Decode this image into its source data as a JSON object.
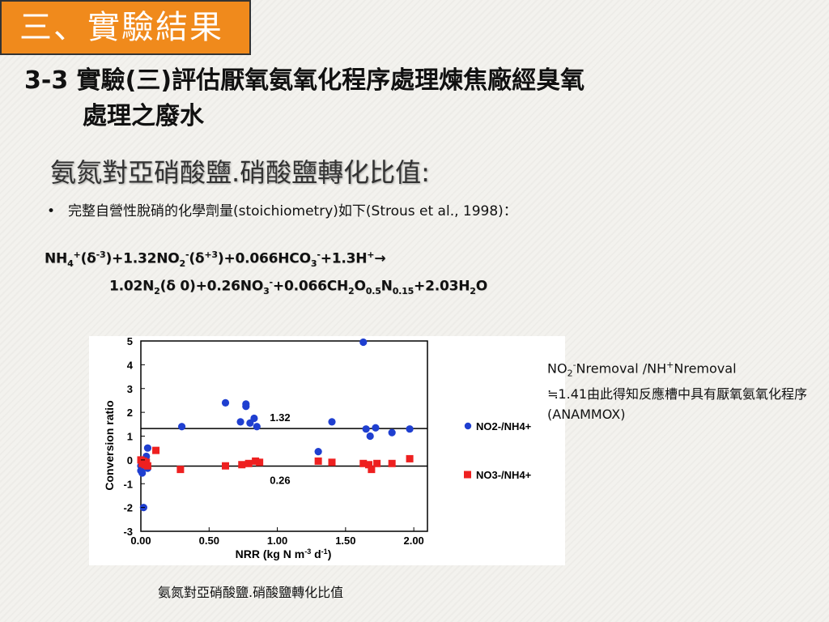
{
  "section_tag": "三、實驗結果",
  "heading": {
    "line1": "3-3 實驗(三)評估厭氧氨氧化程序處理煉焦廠經臭氧",
    "line2": "處理之廢水"
  },
  "subheading": "氨氮對亞硝酸鹽.硝酸鹽轉化比值:",
  "bullet": {
    "symbol": "•",
    "text": "完整自營性脫硝的化學劑量(stoichiometry)如下(Strous et al., 1998)："
  },
  "equation": {
    "line1": {
      "p1": "NH",
      "p1_sub": "4",
      "p1_sup": "+",
      "p2": "(δ",
      "p2_sup": "-3",
      "p3": ")+1.32NO",
      "p3_sub": "2",
      "p3_sup": "-",
      "p4": "(δ",
      "p4_sup": "+3",
      "p5": ")+0.066HCO",
      "p5_sub": "3",
      "p5_sup": "-",
      "p6": "+1.3H",
      "p6_sup": "+",
      "p7": "→"
    },
    "line2": {
      "p1": "1.02N",
      "p1_sub": "2",
      "p2": "(δ 0)+0.26NO",
      "p2_sub": "3",
      "p2_sup": "-",
      "p3": "+0.066CH",
      "p3_sub": "2",
      "p4": "O",
      "p4_sub": "0.5",
      "p5": "N",
      "p5_sub": "0.15",
      "p6": "+2.03H",
      "p6_sub": "2",
      "p7": "O"
    }
  },
  "note": {
    "a": "NO",
    "a_sub": "2",
    "a_sup": "-",
    "b": "Nremoval /NH",
    "b_sub": "4",
    "b_sup": "+",
    "c": "Nremoval",
    "d": "≒1.41由此得知反應槽中具有厭氧氨氧化程序(ANAMMOX)"
  },
  "caption": "氨氮對亞硝酸鹽.硝酸鹽轉化比值",
  "colors": {
    "tag_bg": "#f08a1c",
    "series_no2": "#1f3fd0",
    "series_no3": "#ee2020"
  },
  "chart_data": {
    "type": "scatter",
    "xlabel_main": "NRR (kg N m",
    "xlabel_sup1": "-3",
    "xlabel_mid": " d",
    "xlabel_sup2": "-1",
    "xlabel_end": ")",
    "ylabel": "Conversion ratio",
    "xlim": [
      0,
      2.1
    ],
    "ylim": [
      -3,
      5
    ],
    "x_ticks": [
      "0.00",
      "0.50",
      "1.00",
      "1.50",
      "2.00"
    ],
    "x_tick_values": [
      0,
      0.5,
      1.0,
      1.5,
      2.0
    ],
    "y_ticks": [
      "5",
      "4",
      "3",
      "2",
      "1",
      "0",
      "-1",
      "-2",
      "-3"
    ],
    "y_tick_values": [
      5,
      4,
      3,
      2,
      1,
      0,
      -1,
      -2,
      -3
    ],
    "reference_lines": [
      {
        "y": 1.32,
        "label": "1.32"
      },
      {
        "y": -0.26,
        "label": "0.26"
      }
    ],
    "legend_position": "right",
    "series": [
      {
        "name": "NO2-/NH4+",
        "marker": "circle",
        "points": [
          [
            0.0,
            -0.25
          ],
          [
            0.0,
            -0.45
          ],
          [
            0.01,
            -0.55
          ],
          [
            0.02,
            -2.0
          ],
          [
            0.03,
            -0.05
          ],
          [
            0.04,
            0.15
          ],
          [
            0.05,
            0.5
          ],
          [
            0.05,
            -0.35
          ],
          [
            0.3,
            1.4
          ],
          [
            0.62,
            2.4
          ],
          [
            0.73,
            1.6
          ],
          [
            0.77,
            2.35
          ],
          [
            0.77,
            2.25
          ],
          [
            0.8,
            1.55
          ],
          [
            0.83,
            1.75
          ],
          [
            0.85,
            1.4
          ],
          [
            1.3,
            0.35
          ],
          [
            1.4,
            1.6
          ],
          [
            1.63,
            4.95
          ],
          [
            1.65,
            1.3
          ],
          [
            1.68,
            1.0
          ],
          [
            1.72,
            1.35
          ],
          [
            1.84,
            1.15
          ],
          [
            1.97,
            1.3
          ]
        ]
      },
      {
        "name": "NO3-/NH4+",
        "marker": "square",
        "points": [
          [
            0.0,
            0.0
          ],
          [
            0.01,
            -0.15
          ],
          [
            0.02,
            -0.05
          ],
          [
            0.03,
            -0.2
          ],
          [
            0.04,
            -0.1
          ],
          [
            0.05,
            -0.25
          ],
          [
            0.11,
            0.4
          ],
          [
            0.29,
            -0.4
          ],
          [
            0.62,
            -0.25
          ],
          [
            0.74,
            -0.2
          ],
          [
            0.79,
            -0.15
          ],
          [
            0.84,
            -0.05
          ],
          [
            0.87,
            -0.1
          ],
          [
            1.3,
            -0.05
          ],
          [
            1.4,
            -0.1
          ],
          [
            1.63,
            -0.15
          ],
          [
            1.67,
            -0.2
          ],
          [
            1.69,
            -0.4
          ],
          [
            1.73,
            -0.15
          ],
          [
            1.84,
            -0.15
          ],
          [
            1.97,
            0.05
          ]
        ]
      }
    ]
  }
}
